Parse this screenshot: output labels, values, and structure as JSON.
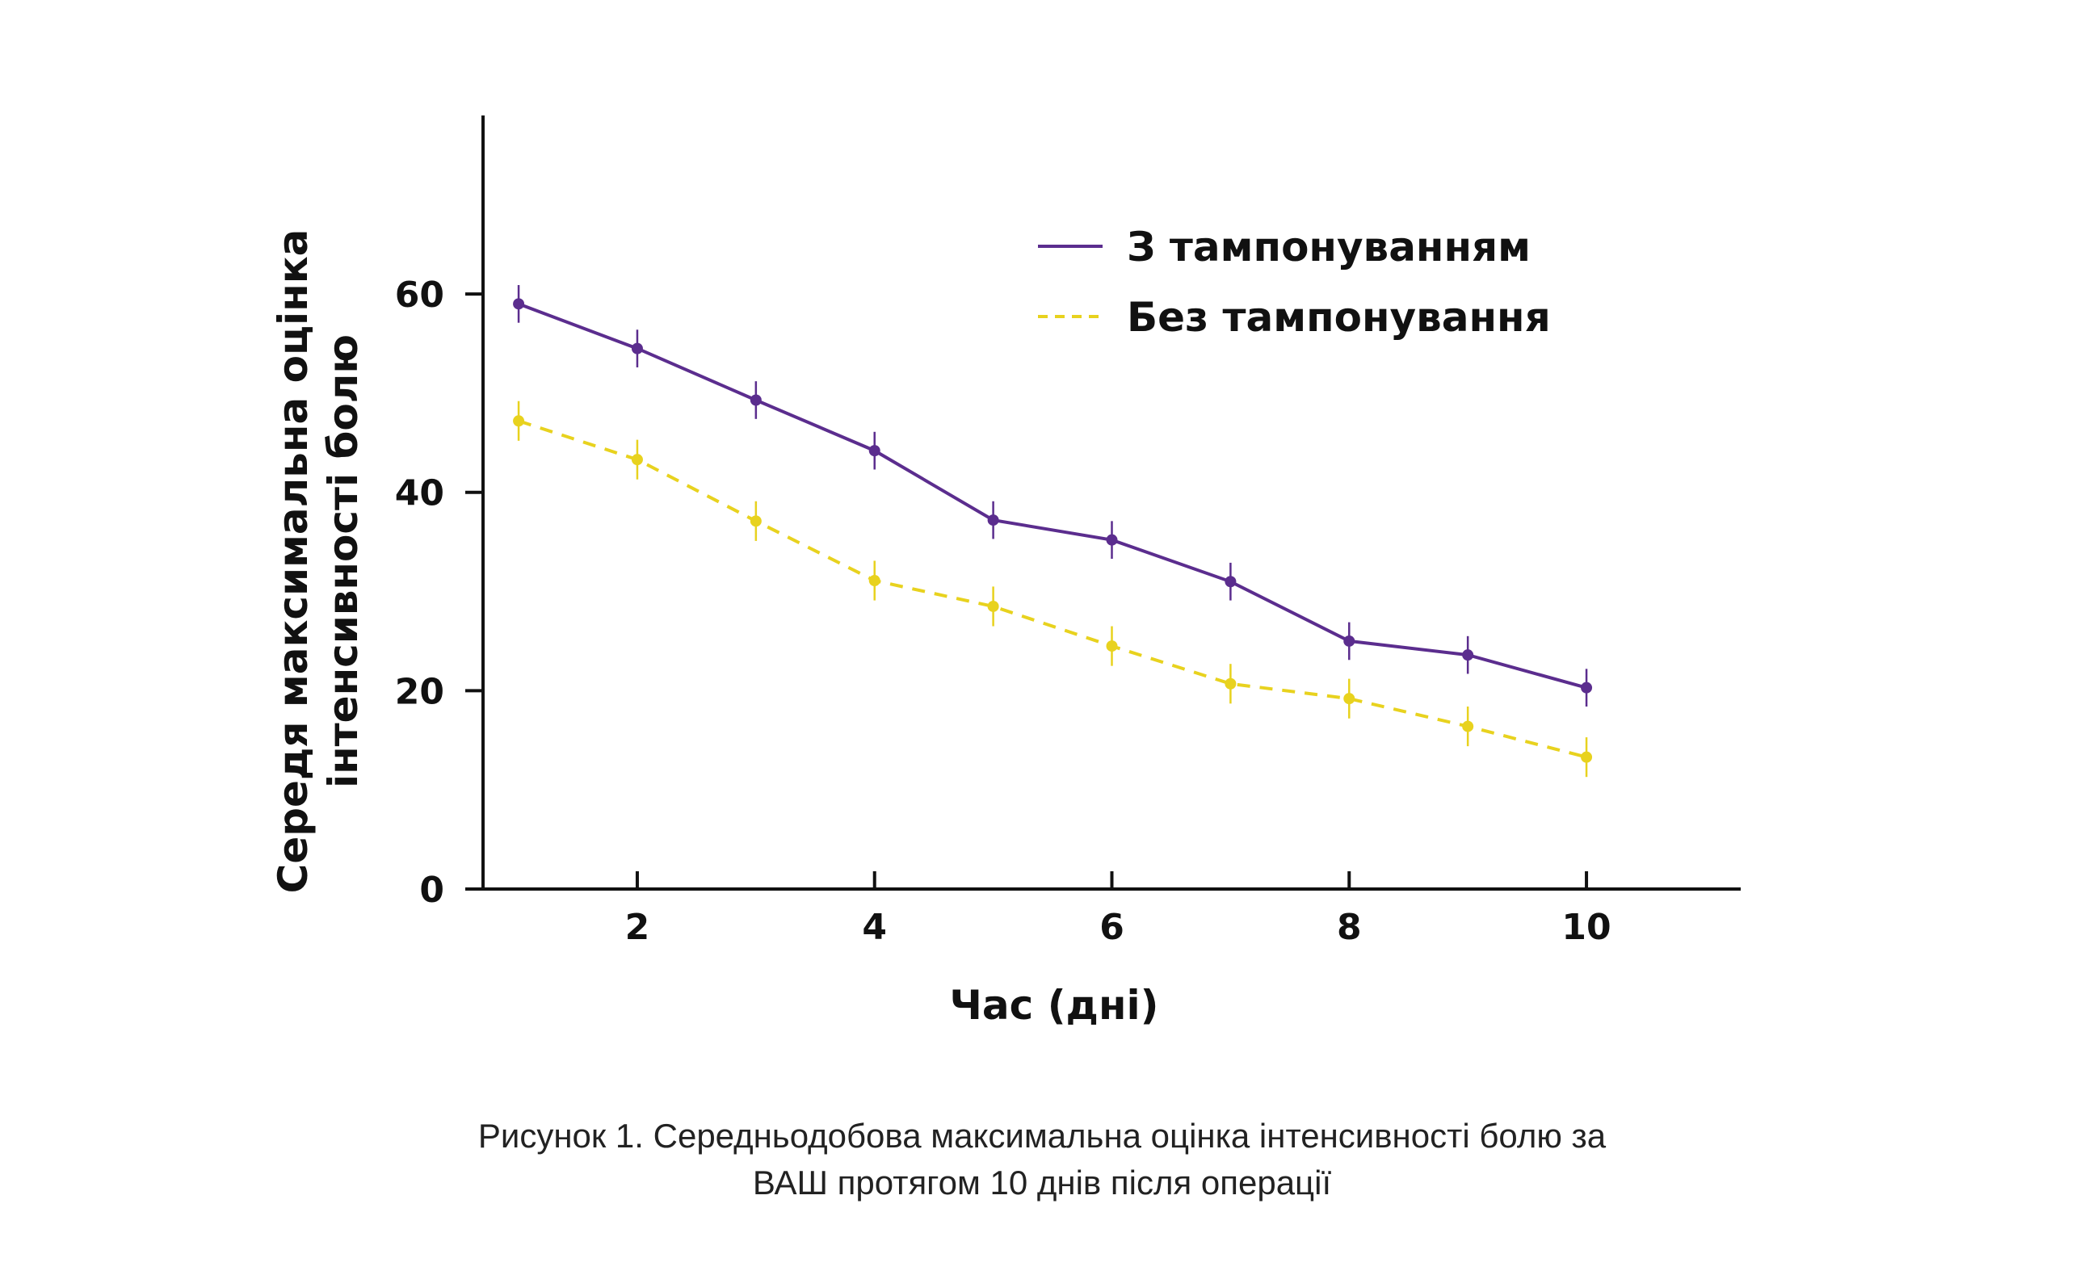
{
  "chart_data": {
    "type": "line",
    "title": "",
    "xlabel": "Час (дні)",
    "ylabel_line1": "Середя максимальна оцінка",
    "ylabel_line2": "інтенсивності болю",
    "x": [
      1,
      2,
      3,
      4,
      5,
      6,
      7,
      8,
      9,
      10
    ],
    "x_ticks": [
      2,
      4,
      6,
      8,
      10
    ],
    "x_tick_labels": [
      "2",
      "4",
      "6",
      "8",
      "10"
    ],
    "y_ticks": [
      0,
      20,
      40,
      60
    ],
    "y_tick_labels": [
      "0",
      "20",
      "40",
      "60"
    ],
    "xlim": [
      0.7,
      11.3
    ],
    "ylim": [
      0,
      78
    ],
    "grid": false,
    "legend_position": "top-right",
    "series": [
      {
        "name": "З тампонуванням",
        "color": "#5b2d8e",
        "style": "solid",
        "values": [
          59.0,
          54.5,
          49.3,
          44.2,
          37.2,
          35.2,
          31.0,
          25.0,
          23.6,
          20.3
        ],
        "error": [
          1.9,
          1.9,
          1.9,
          1.9,
          1.9,
          1.9,
          1.9,
          1.9,
          1.9,
          1.9
        ]
      },
      {
        "name": "Без тампонування",
        "color": "#e8d21e",
        "style": "dashed",
        "values": [
          47.2,
          43.3,
          37.1,
          31.1,
          28.5,
          24.5,
          20.7,
          19.2,
          16.4,
          13.3
        ],
        "error": [
          2.0,
          2.0,
          2.0,
          2.0,
          2.0,
          2.0,
          2.0,
          2.0,
          2.0,
          2.0
        ]
      }
    ]
  },
  "caption": {
    "line1": "Рисунок 1. Середньодобова максимальна оцінка інтенсивності болю за",
    "line2": "ВАШ протягом 10 днів після операції"
  }
}
